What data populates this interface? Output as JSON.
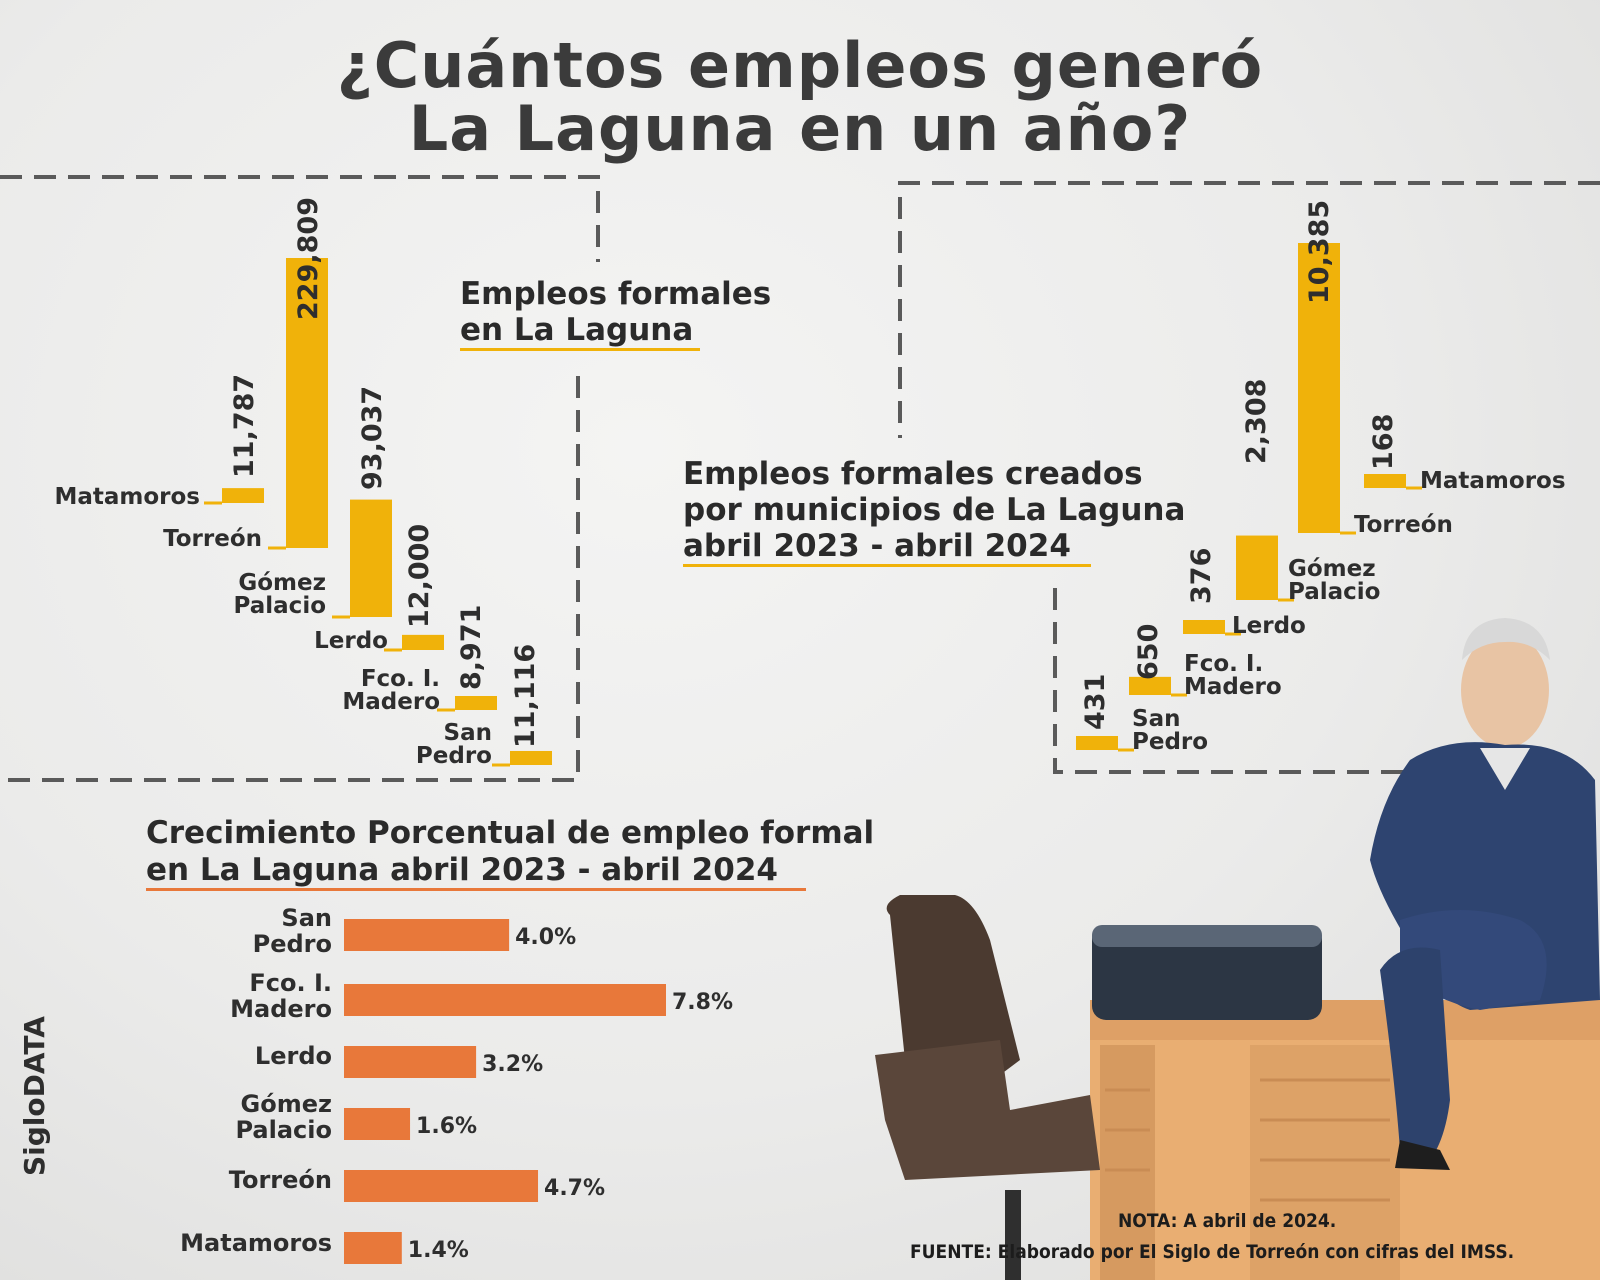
{
  "title_line1": "¿Cuántos empleos generó",
  "title_line2": "La Laguna en un año?",
  "brand": "SigloDATA",
  "note": "NOTA: A abril de 2024.",
  "source": "FUENTE: Elaborado por El Siglo de Torreón con cifras del IMSS.",
  "colors": {
    "gold": "#f0b20a",
    "orange": "#e8783a",
    "dash": "#5a5a5a",
    "text": "#2e2e2e"
  },
  "chart_data": [
    {
      "type": "bar",
      "title_line1": "Empleos formales",
      "title_line2": "en La Laguna",
      "categories": [
        "Matamoros",
        "Torreón",
        "Gómez Palacio",
        "Lerdo",
        "Fco. I. Madero",
        "San Pedro"
      ],
      "values": [
        11787,
        229809,
        93037,
        12000,
        8971,
        11116
      ],
      "value_labels": [
        "11,787",
        "229,809",
        "93,037",
        "12,000",
        "8,971",
        "11,116"
      ]
    },
    {
      "type": "bar",
      "title_line1": "Empleos formales creados",
      "title_line2": "por municipios de La Laguna",
      "title_line3": "abril 2023 - abril 2024",
      "categories": [
        "San Pedro",
        "Fco. I. Madero",
        "Lerdo",
        "Gómez Palacio",
        "Torreón",
        "Matamoros"
      ],
      "values": [
        431,
        650,
        376,
        2308,
        10385,
        168
      ],
      "value_labels": [
        "431",
        "650",
        "376",
        "2,308",
        "10,385",
        "168"
      ]
    },
    {
      "type": "bar",
      "orientation": "horizontal",
      "title_line1": "Crecimiento Porcentual de empleo formal",
      "title_line2": "en La Laguna abril 2023 - abril 2024",
      "categories": [
        "San Pedro",
        "Fco. I. Madero",
        "Lerdo",
        "Gómez Palacio",
        "Torreón",
        "Matamoros"
      ],
      "values": [
        4.0,
        7.8,
        3.2,
        1.6,
        4.7,
        1.4
      ],
      "value_labels": [
        "4.0%",
        "7.8%",
        "3.2%",
        "1.6%",
        "4.7%",
        "1.4%"
      ]
    }
  ]
}
